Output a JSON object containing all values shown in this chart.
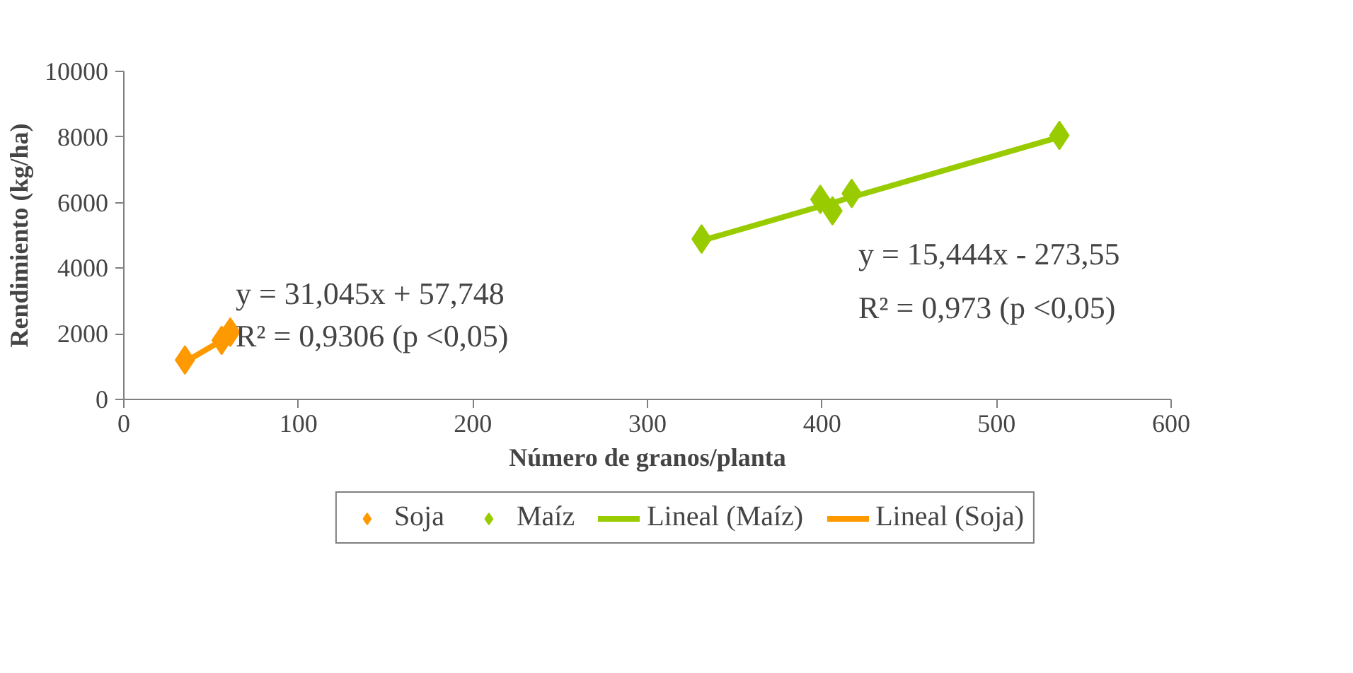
{
  "chart_data": {
    "type": "scatter",
    "xlabel": "Número de granos/planta",
    "ylabel": "Rendimiento (kg/ha)",
    "xlim": [
      0,
      600
    ],
    "xticks": [
      0,
      100,
      200,
      300,
      400,
      500,
      600
    ],
    "ylim": [
      0,
      10000
    ],
    "yticks": [
      0,
      2000,
      4000,
      6000,
      8000,
      10000
    ],
    "legend": "bottom",
    "marker": "diamond",
    "series": [
      {
        "name": "Soja",
        "color": "#ff9900",
        "x": [
          35,
          56,
          61
        ],
        "values": [
          1200,
          1800,
          2050
        ]
      },
      {
        "name": "Maíz",
        "color": "#99cc00",
        "x": [
          331,
          399,
          406,
          417,
          536
        ],
        "values": [
          4890,
          6100,
          5750,
          6280,
          8050
        ]
      },
      {
        "name": "Lineal (Maíz)",
        "type": "line",
        "marker": "none",
        "color": "#99cc00",
        "x": [
          331,
          536
        ],
        "values": [
          4840,
          8000
        ]
      },
      {
        "name": "Lineal (Soja)",
        "type": "line",
        "marker": "none",
        "color": "#ff9900",
        "x": [
          35,
          61
        ],
        "values": [
          1140,
          1950
        ]
      }
    ],
    "annotations": [
      "y = 31,045x + 57,748",
      "R² = 0,9306 (p <0,05)",
      "y = 15,444x - 273,55",
      "R² = 0,973 (p <0,05)"
    ]
  }
}
